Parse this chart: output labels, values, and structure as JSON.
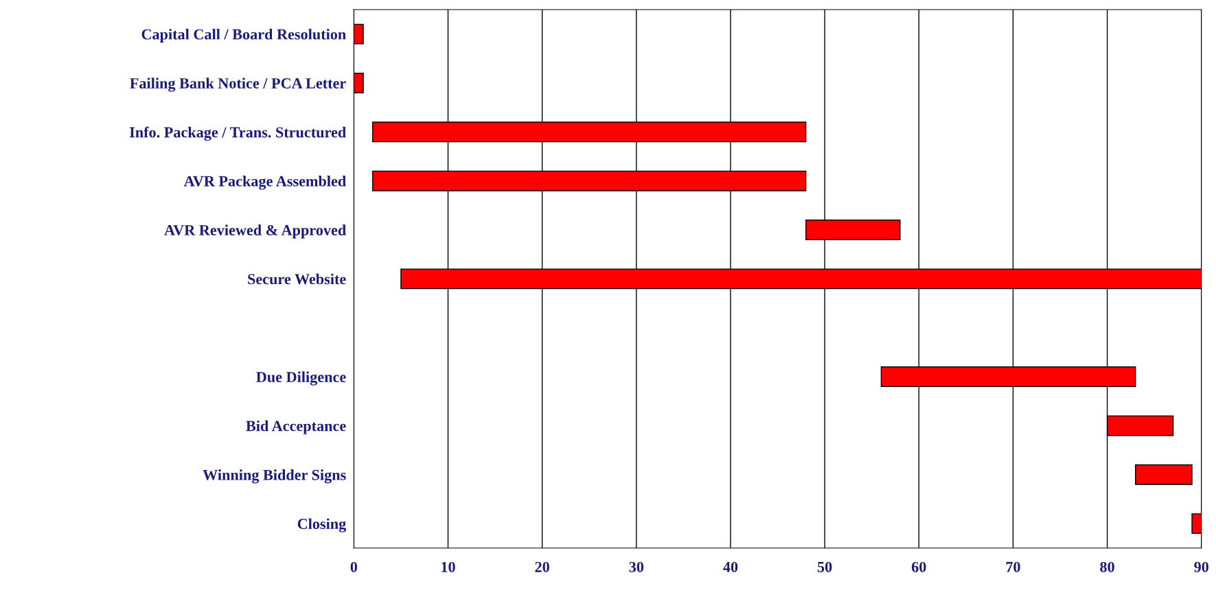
{
  "chart_data": {
    "type": "bar",
    "orientation": "horizontal",
    "categories": [
      "Capital Call / Board Resolution",
      "Failing Bank Notice / PCA Letter",
      "Info. Package / Trans. Structured",
      "AVR Package Assembled",
      "AVR Reviewed & Approved",
      "Secure Website",
      null,
      "Due Diligence",
      "Bid Acceptance",
      "Winning Bidder Signs",
      "Closing"
    ],
    "base": [
      0,
      0,
      2,
      2,
      48,
      5,
      null,
      56,
      80,
      83,
      89
    ],
    "values": [
      1,
      1,
      46,
      46,
      10,
      85,
      null,
      27,
      7,
      6,
      1
    ],
    "color": "#ff0000",
    "xlim": [
      0,
      90
    ],
    "xticks": [
      0,
      10,
      20,
      30,
      40,
      50,
      60,
      70,
      80,
      90
    ],
    "grid": "x"
  }
}
